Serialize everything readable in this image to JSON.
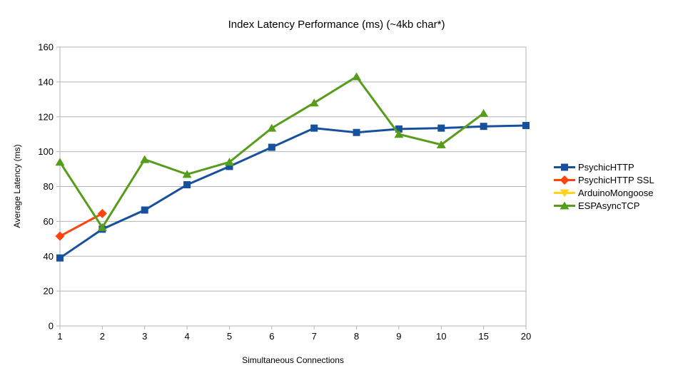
{
  "chart_data": {
    "type": "line",
    "title": "Index Latency Performance (ms) (~4kb char*)",
    "xlabel": "Simultaneous Connections",
    "ylabel": "Average Latency (ms)",
    "categories": [
      "1",
      "2",
      "3",
      "4",
      "5",
      "6",
      "7",
      "8",
      "9",
      "10",
      "15",
      "20"
    ],
    "y_ticks": [
      0,
      20,
      40,
      60,
      80,
      100,
      120,
      140,
      160
    ],
    "ylim": [
      0,
      160
    ],
    "grid": "horizontal",
    "grid_color": "#b3b3b3",
    "axis_color": "#b3b3b3",
    "text_color": "#000000",
    "legend_position": "right",
    "series": [
      {
        "name": "PsychicHTTP",
        "color": "#17519e",
        "marker": "square",
        "values": [
          39,
          55.5,
          66.5,
          81,
          91.5,
          102.5,
          113.5,
          111,
          113,
          113.5,
          114.5,
          115
        ]
      },
      {
        "name": "PsychicHTTP SSL",
        "color": "#ff420e",
        "marker": "diamond",
        "values": [
          51.5,
          64.5,
          null,
          null,
          null,
          null,
          null,
          null,
          null,
          null,
          null,
          null
        ]
      },
      {
        "name": "ArduinoMongoose",
        "color": "#ffd320",
        "marker": "triangle-down",
        "values": [
          null,
          null,
          null,
          null,
          null,
          null,
          null,
          null,
          null,
          null,
          null,
          null
        ]
      },
      {
        "name": "ESPAsyncTCP",
        "color": "#579d1c",
        "marker": "triangle-up",
        "values": [
          94,
          56.5,
          95.5,
          87,
          94,
          113.5,
          128,
          143,
          110,
          104,
          122,
          null
        ]
      }
    ]
  }
}
